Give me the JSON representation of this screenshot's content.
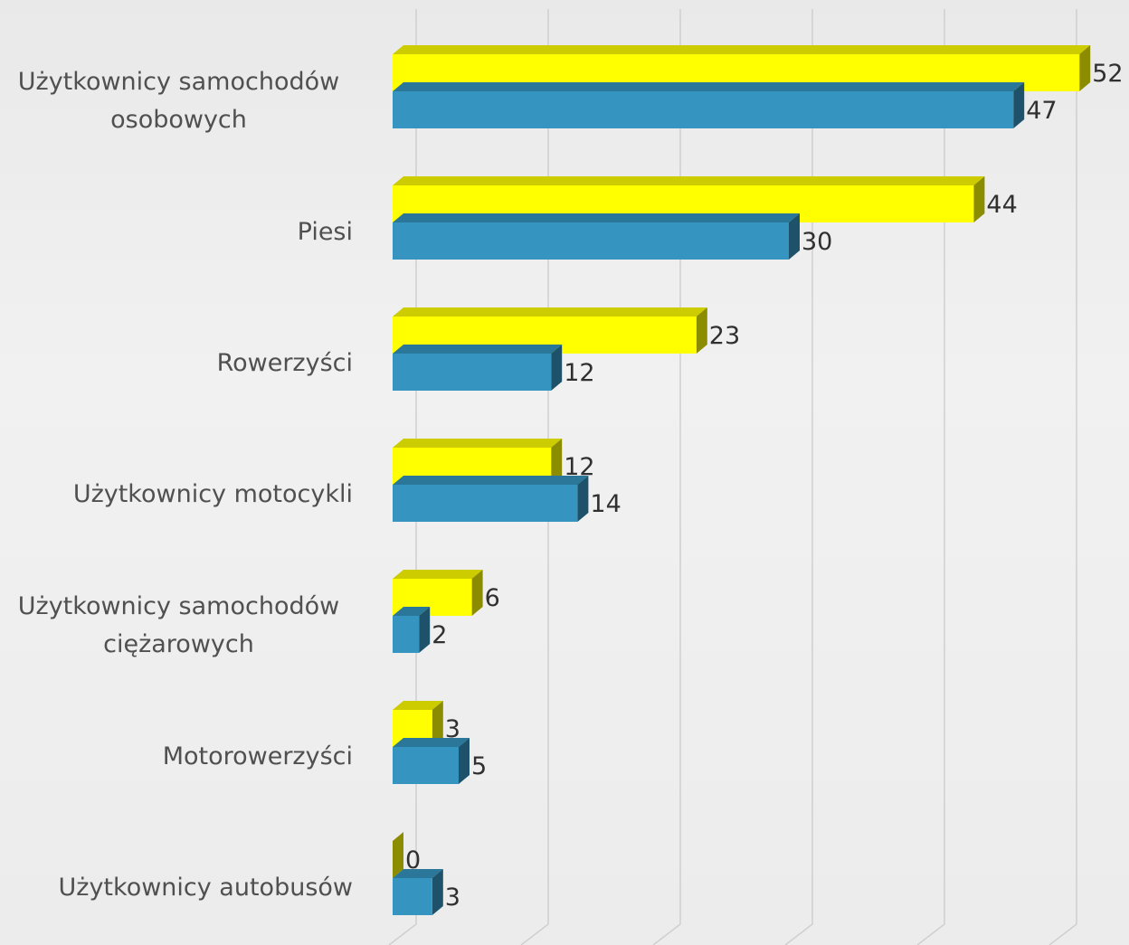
{
  "chart_data": {
    "type": "bar3d_horizontal",
    "categories": [
      "Użytkownicy samochodów osobowych",
      "Piesi",
      "Rowerzyści",
      "Użytkownicy motocykli",
      "Użytkownicy samochodów ciężarowych",
      "Motorowerzyści",
      "Użytkownicy autobusów"
    ],
    "series": [
      {
        "color": "#ffff00",
        "values": [
          52,
          44,
          23,
          12,
          6,
          3,
          0
        ]
      },
      {
        "color": "#3595c0",
        "values": [
          47,
          30,
          12,
          14,
          2,
          5,
          3
        ]
      }
    ],
    "xlim": [
      0,
      50
    ],
    "xticks": [
      0,
      10,
      20,
      30,
      40,
      50
    ],
    "grid": true
  }
}
